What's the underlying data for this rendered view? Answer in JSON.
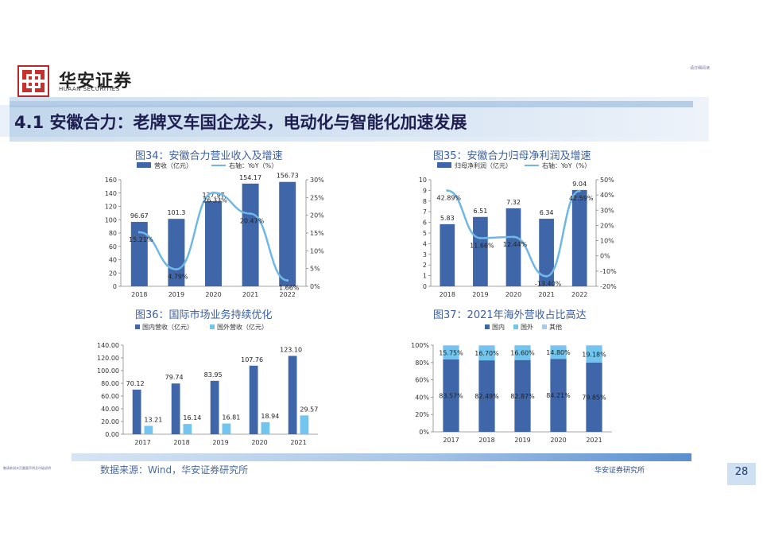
{
  "header": {
    "logo_cn": "华安证券",
    "logo_en": "HUAAN SECURITIES",
    "top_note": "请仔细阅读"
  },
  "banner": {
    "title": "4.1 安徽合力：老牌叉车国企龙头，电动化与智能化加速发展"
  },
  "footer": {
    "left_note": "敬请参阅末页重要声明及评级说明",
    "source": "数据来源：Wind，华安证券研究所",
    "org": "华安证券研究所",
    "page": "28"
  },
  "colors": {
    "bar": "#3f66a8",
    "line": "#6fb7e6",
    "light_bar": "#72c5ee",
    "title": "#3b5fa0"
  },
  "chart_data": [
    {
      "title": "图34：安徽合力营业收入及增速",
      "type": "bar+line",
      "categories": [
        "2018",
        "2019",
        "2020",
        "2021",
        "2022"
      ],
      "series": [
        {
          "name": "营收（亿元）",
          "type": "bar",
          "values": [
            96.67,
            101.3,
            127.97,
            154.17,
            156.73
          ],
          "labels": [
            "96.67",
            "101.3",
            "127.97",
            "154.17",
            "156.73"
          ]
        },
        {
          "name": "右轴：YoY（%）",
          "type": "line",
          "values": [
            15.21,
            4.79,
            26.33,
            20.47,
            1.66
          ],
          "labels": [
            "15.21%",
            "4.79%",
            "26.33%",
            "20.47%",
            "1.66%"
          ]
        }
      ],
      "ylim": [
        0,
        160
      ],
      "yticks": [
        "0",
        "20",
        "40",
        "60",
        "80",
        "100",
        "120",
        "140",
        "160"
      ],
      "y2lim": [
        0,
        30
      ],
      "y2ticks": [
        "0%",
        "5%",
        "10%",
        "15%",
        "20%",
        "25%",
        "30%"
      ]
    },
    {
      "title": "图35：安徽合力归母净利润及增速",
      "type": "bar+line",
      "categories": [
        "2018",
        "2019",
        "2020",
        "2021",
        "2022"
      ],
      "series": [
        {
          "name": "归母净利润（亿元）",
          "type": "bar",
          "values": [
            5.83,
            6.51,
            7.32,
            6.34,
            9.04
          ],
          "labels": [
            "5.83",
            "6.51",
            "7.32",
            "6.34",
            "9.04"
          ]
        },
        {
          "name": "右轴：YoY（%）",
          "type": "line",
          "values": [
            42.89,
            11.66,
            12.44,
            -13.4,
            42.59
          ],
          "labels": [
            "42.89%",
            "11.66%",
            "12.44%",
            "-13.40%",
            "42.59%"
          ]
        }
      ],
      "ylim": [
        0,
        10
      ],
      "yticks": [
        "0",
        "1",
        "2",
        "3",
        "4",
        "5",
        "6",
        "7",
        "8",
        "9",
        "10"
      ],
      "y2lim": [
        -20,
        50
      ],
      "y2ticks": [
        "-20%",
        "-10%",
        "0%",
        "10%",
        "20%",
        "30%",
        "40%",
        "50%"
      ]
    },
    {
      "title": "图36：国际市场业务持续优化",
      "type": "bar",
      "categories": [
        "2017",
        "2018",
        "2019",
        "2020",
        "2021"
      ],
      "series": [
        {
          "name": "国内营收（亿元）",
          "values": [
            70.12,
            79.74,
            83.95,
            107.76,
            123.1
          ],
          "labels": [
            "70.12",
            "79.74",
            "83.95",
            "107.76",
            "123.10"
          ]
        },
        {
          "name": "国外营收（亿元）",
          "values": [
            13.21,
            16.14,
            16.81,
            18.94,
            29.57
          ],
          "labels": [
            "13.21",
            "16.14",
            "16.81",
            "18.94",
            "29.57"
          ]
        }
      ],
      "ylim": [
        0,
        140
      ],
      "yticks": [
        "0.00",
        "20.00",
        "40.00",
        "60.00",
        "80.00",
        "100.00",
        "120.00",
        "140.00"
      ]
    },
    {
      "title": "图37：2021年海外营收占比高达",
      "type": "stacked-bar",
      "categories": [
        "2017",
        "2018",
        "2019",
        "2020",
        "2021"
      ],
      "series": [
        {
          "name": "国内",
          "values": [
            83.57,
            82.49,
            82.87,
            84.21,
            79.85
          ],
          "labels": [
            "83.57%",
            "82.49%",
            "82.87%",
            "84.21%",
            "79.85%"
          ]
        },
        {
          "name": "国外",
          "values": [
            15.75,
            16.7,
            16.6,
            14.8,
            19.18
          ],
          "labels": [
            "15.75%",
            "16.70%",
            "16.60%",
            "14.80%",
            "19.18%"
          ]
        },
        {
          "name": "其他",
          "values": [
            0.68,
            0.81,
            0.53,
            0.99,
            0.97
          ]
        }
      ],
      "ylim": [
        0,
        100
      ],
      "yticks": [
        "0%",
        "20%",
        "40%",
        "60%",
        "80%",
        "100%"
      ]
    }
  ]
}
